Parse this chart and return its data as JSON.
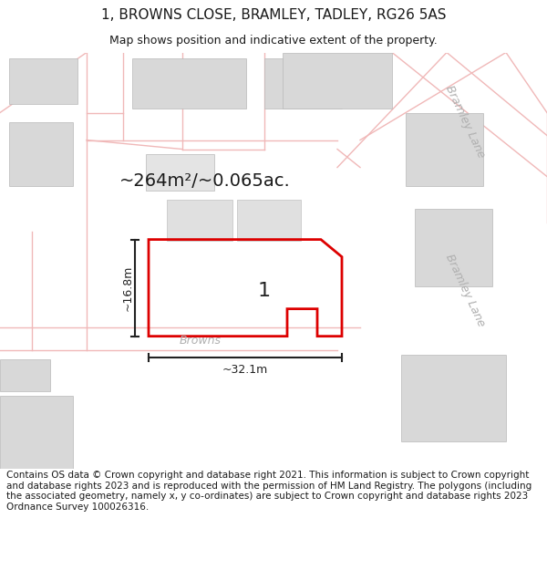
{
  "title": "1, BROWNS CLOSE, BRAMLEY, TADLEY, RG26 5AS",
  "subtitle": "Map shows position and indicative extent of the property.",
  "footer": "Contains OS data © Crown copyright and database right 2021. This information is subject to Crown copyright and database rights 2023 and is reproduced with the permission of HM Land Registry. The polygons (including the associated geometry, namely x, y co-ordinates) are subject to Crown copyright and database rights 2023 Ordnance Survey 100026316.",
  "area_label": "~264m²/~0.065ac.",
  "plot_number": "1",
  "width_label": "~32.1m",
  "height_label": "~16.8m",
  "road_label_browns": "Browns",
  "road_label_bramley1": "Bramley Lane",
  "road_label_bramley2": "Bramley Lane",
  "bg_color": "#ffffff",
  "map_bg": "#f7f7f7",
  "building_color": "#d8d8d8",
  "building_edge": "#b8b8b8",
  "road_line_color": "#f0b8b8",
  "plot_edge_color": "#dd0000",
  "label_color": "#1a1a1a",
  "road_label_color": "#b0b0b0",
  "dim_color": "#222222",
  "title_fontsize": 11,
  "subtitle_fontsize": 9,
  "footer_fontsize": 7.5,
  "dim_fontsize": 9,
  "area_fontsize": 14,
  "plot_num_fontsize": 16
}
